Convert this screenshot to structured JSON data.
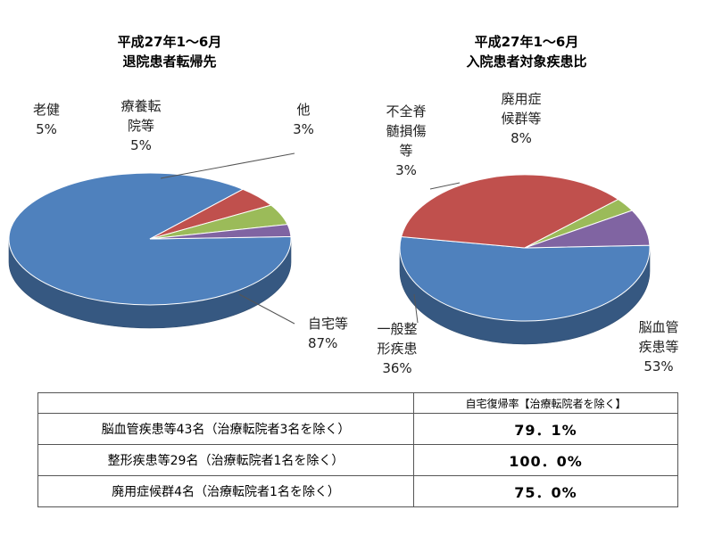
{
  "table": {
    "header": [
      "",
      "自宅復帰率【治療転院者を除く】"
    ],
    "rows": [
      {
        "name": "脳血管疾患等43名（治療転院者3名を除く）",
        "rate": "79．1%"
      },
      {
        "name": "整形疾患等29名（治療転院者1名を除く）",
        "rate": "100．0%"
      },
      {
        "name": "廃用症候群4名（治療転院者1名を除く）",
        "rate": "75．0%"
      }
    ]
  },
  "chart_data": [
    {
      "type": "pie",
      "title": [
        "平成27年1～6月",
        "退院患者転帰先"
      ],
      "slices": [
        {
          "label": [
            "自宅等"
          ],
          "pct_label": "87%",
          "value": 87,
          "color": "#4F81BD"
        },
        {
          "label": [
            "老健"
          ],
          "pct_label": "5%",
          "value": 5,
          "color": "#C0504D"
        },
        {
          "label": [
            "療養転",
            "院等"
          ],
          "pct_label": "5%",
          "value": 5,
          "color": "#9BBB59"
        },
        {
          "label": [
            "他"
          ],
          "pct_label": "3%",
          "value": 3,
          "color": "#8064A2"
        }
      ]
    },
    {
      "type": "pie",
      "title": [
        "平成27年1～6月",
        "入院患者対象疾患比"
      ],
      "slices": [
        {
          "label": [
            "脳血管",
            "疾患等"
          ],
          "pct_label": "53%",
          "value": 53,
          "color": "#4F81BD"
        },
        {
          "label": [
            "一般整",
            "形疾患"
          ],
          "pct_label": "36%",
          "value": 36,
          "color": "#C0504D"
        },
        {
          "label": [
            "不全脊",
            "髄損傷",
            "等"
          ],
          "pct_label": "3%",
          "value": 3,
          "color": "#9BBB59"
        },
        {
          "label": [
            "廃用症",
            "候群等"
          ],
          "pct_label": "8%",
          "value": 8,
          "color": "#8064A2"
        }
      ]
    }
  ]
}
